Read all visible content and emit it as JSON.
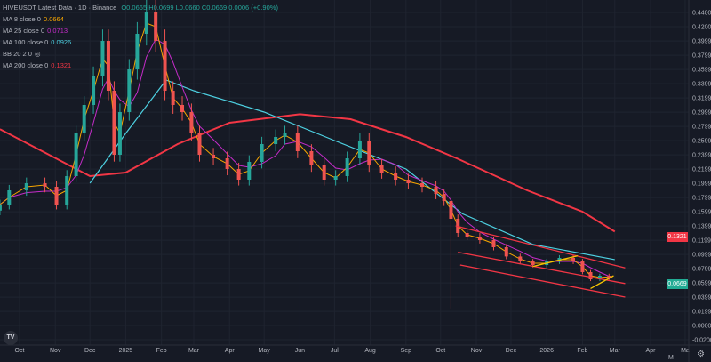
{
  "header": {
    "symbol": "HIVEUSDT Latest Data · 1D · Binance",
    "ohlc": "O0.0665 H0.0699 L0.0660 C0.0669 0.0006 (+0.90%)"
  },
  "indicators": [
    {
      "label": "MA 8 close 0",
      "value": "0.0664",
      "color": "#f7a600"
    },
    {
      "label": "MA 25 close 0",
      "value": "0.0713",
      "color": "#c52cc9"
    },
    {
      "label": "MA 100 close 0",
      "value": "0.0926",
      "color": "#4dd0e1"
    },
    {
      "label": "BB 20 2 0",
      "value": "◎",
      "color": "#b2b5be"
    },
    {
      "label": "MA 200 close 0",
      "value": "0.1321",
      "color": "#f23645"
    }
  ],
  "badges": {
    "ma200": "0.1321",
    "last": "0.0669"
  },
  "footer": {
    "logo": "TV",
    "scale_mode": "M",
    "settings_icon": "gear-icon"
  },
  "chart_data": {
    "type": "candlestick",
    "title": "HIVEUSDT Latest Data · 1D · Binance",
    "ylim": [
      -0.02,
      0.45
    ],
    "y_ticks": [
      "0.4400",
      "0.4200",
      "0.3999",
      "0.3799",
      "0.3599",
      "0.3399",
      "0.3199",
      "0.2999",
      "0.2799",
      "0.2599",
      "0.2399",
      "0.2199",
      "0.1999",
      "0.1799",
      "0.1599",
      "0.1399",
      "0.1199",
      "0.0999",
      "0.0799",
      "0.0599",
      "0.0399",
      "0.0199",
      "0.0000",
      "-0.0200"
    ],
    "x_ticks": [
      {
        "label": "Oct",
        "date": "2024-10-01"
      },
      {
        "label": "Nov",
        "date": "2024-11-01"
      },
      {
        "label": "Dec",
        "date": "2024-12-01"
      },
      {
        "label": "2025",
        "date": "2025-01-01"
      },
      {
        "label": "Feb",
        "date": "2025-02-01"
      },
      {
        "label": "Mar",
        "date": "2025-03-01"
      },
      {
        "label": "Apr",
        "date": "2025-04-01"
      },
      {
        "label": "May",
        "date": "2025-05-01"
      },
      {
        "label": "Jun",
        "date": "2025-06-01"
      },
      {
        "label": "Jul",
        "date": "2025-07-01"
      },
      {
        "label": "Aug",
        "date": "2025-08-01"
      },
      {
        "label": "Sep",
        "date": "2025-09-01"
      },
      {
        "label": "Oct",
        "date": "2025-10-01"
      },
      {
        "label": "Nov",
        "date": "2025-11-01"
      },
      {
        "label": "Dec",
        "date": "2025-12-01"
      },
      {
        "label": "2026",
        "date": "2026-01-01"
      },
      {
        "label": "Feb",
        "date": "2026-02-01"
      },
      {
        "label": "Mar",
        "date": "2026-03-01"
      },
      {
        "label": "Apr",
        "date": "2026-04-01"
      },
      {
        "label": "Ma",
        "date": "2026-05-01"
      }
    ],
    "closes": [
      [
        "2024-09-14",
        0.17
      ],
      [
        "2024-09-22",
        0.19
      ],
      [
        "2024-10-07",
        0.2
      ],
      [
        "2024-10-23",
        0.195
      ],
      [
        "2024-11-02",
        0.17
      ],
      [
        "2024-11-11",
        0.21
      ],
      [
        "2024-11-19",
        0.27
      ],
      [
        "2024-11-26",
        0.31
      ],
      [
        "2024-12-04",
        0.35
      ],
      [
        "2024-12-12",
        0.4
      ],
      [
        "2024-12-17",
        0.33
      ],
      [
        "2024-12-22",
        0.24
      ],
      [
        "2024-12-27",
        0.3
      ],
      [
        "2025-01-04",
        0.36
      ],
      [
        "2025-01-11",
        0.41
      ],
      [
        "2025-01-19",
        0.44
      ],
      [
        "2025-01-27",
        0.4
      ],
      [
        "2025-02-04",
        0.33
      ],
      [
        "2025-02-11",
        0.31
      ],
      [
        "2025-02-19",
        0.3
      ],
      [
        "2025-02-27",
        0.27
      ],
      [
        "2025-03-06",
        0.24
      ],
      [
        "2025-03-18",
        0.235
      ],
      [
        "2025-03-30",
        0.22
      ],
      [
        "2025-04-09",
        0.205
      ],
      [
        "2025-04-18",
        0.23
      ],
      [
        "2025-04-29",
        0.255
      ],
      [
        "2025-05-11",
        0.265
      ],
      [
        "2025-05-19",
        0.27
      ],
      [
        "2025-05-30",
        0.245
      ],
      [
        "2025-06-11",
        0.225
      ],
      [
        "2025-06-22",
        0.205
      ],
      [
        "2025-07-02",
        0.21
      ],
      [
        "2025-07-12",
        0.235
      ],
      [
        "2025-07-23",
        0.26
      ],
      [
        "2025-07-31",
        0.225
      ],
      [
        "2025-08-11",
        0.215
      ],
      [
        "2025-08-23",
        0.205
      ],
      [
        "2025-09-03",
        0.2
      ],
      [
        "2025-09-15",
        0.195
      ],
      [
        "2025-09-27",
        0.185
      ],
      [
        "2025-10-04",
        0.175
      ],
      [
        "2025-10-10",
        0.15
      ],
      [
        "2025-10-16",
        0.13
      ],
      [
        "2025-10-24",
        0.125
      ],
      [
        "2025-11-04",
        0.12
      ],
      [
        "2025-11-16",
        0.11
      ],
      [
        "2025-11-27",
        0.097
      ],
      [
        "2025-12-09",
        0.09
      ],
      [
        "2025-12-20",
        0.085
      ],
      [
        "2026-01-01",
        0.09
      ],
      [
        "2026-01-12",
        0.095
      ],
      [
        "2026-01-24",
        0.09
      ],
      [
        "2026-02-01",
        0.075
      ],
      [
        "2026-02-08",
        0.065
      ],
      [
        "2026-02-16",
        0.07
      ],
      [
        "2026-02-24",
        0.0669
      ]
    ],
    "extreme_wick": {
      "date": "2025-10-10",
      "low": 0.024
    },
    "series": [
      {
        "name": "MA 200 close 0",
        "color": "#f23645",
        "points": [
          [
            "2024-09-14",
            0.276
          ],
          [
            "2024-12-01",
            0.21
          ],
          [
            "2025-01-01",
            0.215
          ],
          [
            "2025-02-15",
            0.255
          ],
          [
            "2025-04-01",
            0.285
          ],
          [
            "2025-06-01",
            0.297
          ],
          [
            "2025-07-15",
            0.29
          ],
          [
            "2025-09-01",
            0.265
          ],
          [
            "2025-10-15",
            0.235
          ],
          [
            "2025-12-15",
            0.19
          ],
          [
            "2026-02-01",
            0.16
          ],
          [
            "2026-03-01",
            0.132
          ]
        ]
      },
      {
        "name": "MA 100 close 0",
        "color": "#4dd0e1",
        "points": [
          [
            "2024-12-01",
            0.2
          ],
          [
            "2025-01-01",
            0.27
          ],
          [
            "2025-02-05",
            0.345
          ],
          [
            "2025-03-01",
            0.33
          ],
          [
            "2025-05-01",
            0.3
          ],
          [
            "2025-07-01",
            0.26
          ],
          [
            "2025-09-01",
            0.22
          ],
          [
            "2025-10-20",
            0.157
          ],
          [
            "2025-12-20",
            0.114
          ],
          [
            "2026-03-01",
            0.0926
          ]
        ]
      }
    ],
    "trendlines": [
      {
        "color": "#f23645",
        "from": [
          "2025-10-14",
          0.14
        ],
        "to": [
          "2026-03-10",
          0.081
        ]
      },
      {
        "color": "#f23645",
        "from": [
          "2025-10-16",
          0.103
        ],
        "to": [
          "2026-03-10",
          0.059
        ]
      },
      {
        "color": "#f23645",
        "from": [
          "2025-10-18",
          0.085
        ],
        "to": [
          "2026-03-10",
          0.04
        ]
      },
      {
        "color": "#f7c600",
        "from": [
          "2025-12-20",
          0.083
        ],
        "to": [
          "2026-01-28",
          0.098
        ]
      },
      {
        "color": "#f7c600",
        "from": [
          "2026-02-08",
          0.052
        ],
        "to": [
          "2026-02-28",
          0.07
        ]
      }
    ],
    "grid": true,
    "legend": "top-left"
  }
}
